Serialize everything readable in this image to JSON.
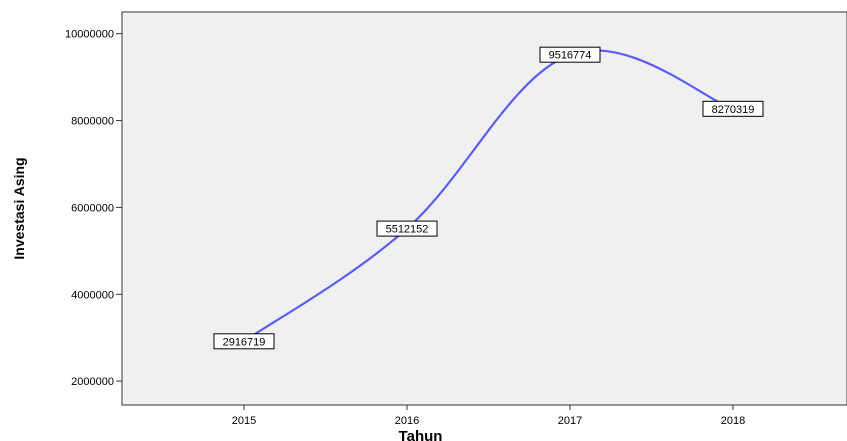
{
  "chart_data": {
    "type": "line",
    "x": [
      "2015",
      "2016",
      "2017",
      "2018"
    ],
    "series": [
      {
        "values": [
          2916719,
          5512152,
          9516774,
          8270319
        ]
      }
    ],
    "data_labels": [
      "2916719",
      "5512152",
      "9516774",
      "8270319"
    ],
    "xlabel": "Tahun",
    "ylabel": "Investasi Asing",
    "y_ticks": [
      2000000,
      4000000,
      6000000,
      8000000,
      10000000
    ],
    "y_tick_labels": [
      "2000000",
      "4000000",
      "6000000",
      "8000000",
      "10000000"
    ],
    "ylim": [
      1450000,
      10500000
    ],
    "grid": false,
    "line_style": "smooth",
    "colors": {
      "line": "#5b5bf5",
      "plot_background": "#f0f0f0",
      "axis": "#333333",
      "label_box_fill": "#ffffff",
      "label_box_stroke": "#000000"
    }
  }
}
